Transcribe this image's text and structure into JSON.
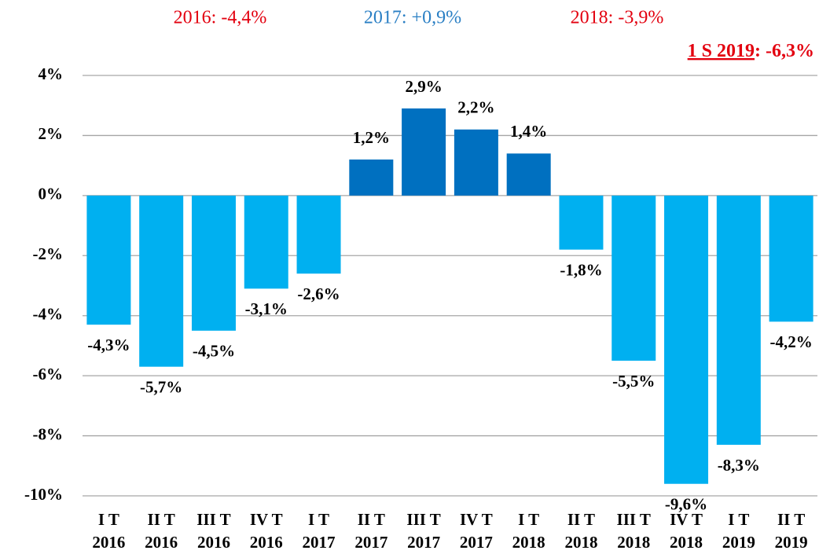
{
  "chart_data": {
    "type": "bar",
    "annotations": [
      {
        "text": "2016: -4,4%",
        "color": "#e3000f"
      },
      {
        "text": "2017: +0,9%",
        "color": "#2a7fc4"
      },
      {
        "text": "2018: -3,9%",
        "color": "#e3000f"
      },
      {
        "parts": [
          "1 S 2019",
          ": -6,3%"
        ],
        "color": "#e3000f"
      }
    ],
    "categories": [
      "I T 2016",
      "II T 2016",
      "III T 2016",
      "IV T 2016",
      "I T 2017",
      "II T 2017",
      "III T 2017",
      "IV T 2017",
      "I T 2018",
      "II T 2018",
      "III T 2018",
      "IV T 2018",
      "I T 2019",
      "II T 2019"
    ],
    "values": [
      -4.3,
      -5.7,
      -4.5,
      -3.1,
      -2.6,
      1.2,
      2.9,
      2.2,
      1.4,
      -1.8,
      -5.5,
      -9.6,
      -8.3,
      -4.2
    ],
    "value_labels": [
      "-4,3%",
      "-5,7%",
      "-4,5%",
      "-3,1%",
      "-2,6%",
      "1,2%",
      "2,9%",
      "2,2%",
      "1,4%",
      "-1,8%",
      "-5,5%",
      "-9,6%",
      "-8,3%",
      "-4,2%"
    ],
    "colors": [
      "#00b0f0",
      "#00b0f0",
      "#00b0f0",
      "#00b0f0",
      "#00b0f0",
      "#0070c0",
      "#0070c0",
      "#0070c0",
      "#0070c0",
      "#00b0f0",
      "#00b0f0",
      "#00b0f0",
      "#00b0f0",
      "#00b0f0"
    ],
    "ylim": [
      -10,
      4
    ],
    "yticks": [
      {
        "value": -10,
        "label": "-10%"
      },
      {
        "value": -8,
        "label": "-8%"
      },
      {
        "value": -6,
        "label": "-6%"
      },
      {
        "value": -4,
        "label": "-4%"
      },
      {
        "value": -2,
        "label": "-2%"
      },
      {
        "value": 0,
        "label": "0%"
      },
      {
        "value": 2,
        "label": "2%"
      },
      {
        "value": 4,
        "label": "4%"
      }
    ],
    "grid": true
  }
}
